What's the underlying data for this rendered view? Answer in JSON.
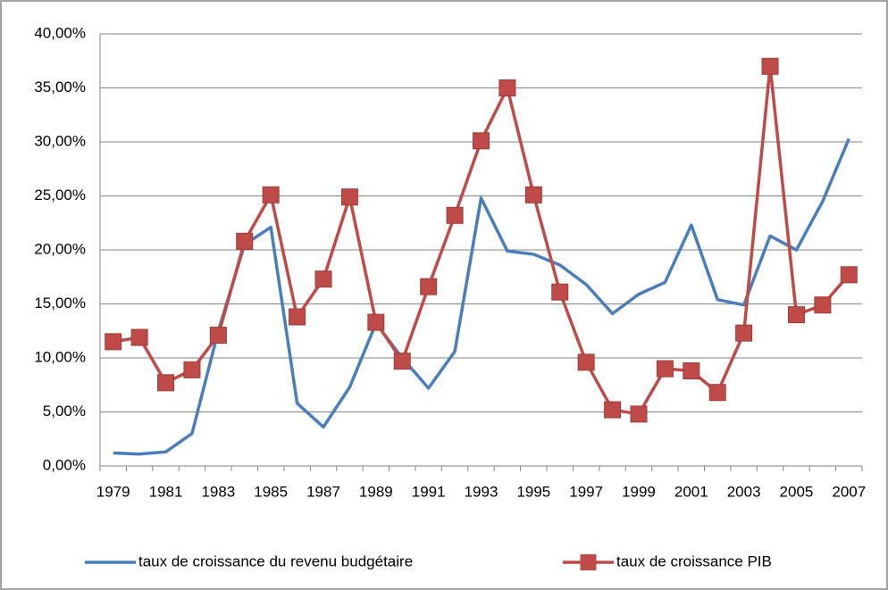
{
  "chart_data": {
    "type": "line",
    "categories": [
      "1979",
      null,
      "1981",
      null,
      "1983",
      null,
      "1985",
      null,
      "1987",
      null,
      "1989",
      null,
      "1991",
      null,
      "1993",
      null,
      "1995",
      null,
      "1997",
      null,
      "1999",
      null,
      "2001",
      null,
      "2003",
      null,
      "2005",
      null,
      "2007"
    ],
    "series": [
      {
        "name": "taux de croissance du revenu budgétaire",
        "color": "#4a7ebb",
        "marker": false,
        "values": [
          1.2,
          1.1,
          1.3,
          3.0,
          12.5,
          20.5,
          22.1,
          5.8,
          3.6,
          7.3,
          13.2,
          10.0,
          7.2,
          10.6,
          24.8,
          19.9,
          19.6,
          18.6,
          16.8,
          14.1,
          15.9,
          17.0,
          22.3,
          15.4,
          14.9,
          21.3,
          20.0,
          24.5,
          30.3
        ]
      },
      {
        "name": "taux de croissance PIB",
        "color": "#be4b48",
        "marker": true,
        "values": [
          11.5,
          11.9,
          7.7,
          8.9,
          12.1,
          20.8,
          25.1,
          13.8,
          17.3,
          24.9,
          13.3,
          9.7,
          16.6,
          23.2,
          30.1,
          35.0,
          25.1,
          16.1,
          9.6,
          5.2,
          4.8,
          9.0,
          8.8,
          6.8,
          12.3,
          37.0,
          14.0,
          14.9,
          17.7
        ]
      }
    ],
    "ylim": [
      0,
      40
    ],
    "yticks": [
      {
        "value": 0,
        "label": "0,00%"
      },
      {
        "value": 5,
        "label": "5,00%"
      },
      {
        "value": 10,
        "label": "10,00%"
      },
      {
        "value": 15,
        "label": "15,00%"
      },
      {
        "value": 20,
        "label": "20,00%"
      },
      {
        "value": 25,
        "label": "25,00%"
      },
      {
        "value": 30,
        "label": "30,00%"
      },
      {
        "value": 35,
        "label": "35,00%"
      },
      {
        "value": 40,
        "label": "40,00%"
      }
    ],
    "grid": true,
    "legend": "bottom"
  }
}
